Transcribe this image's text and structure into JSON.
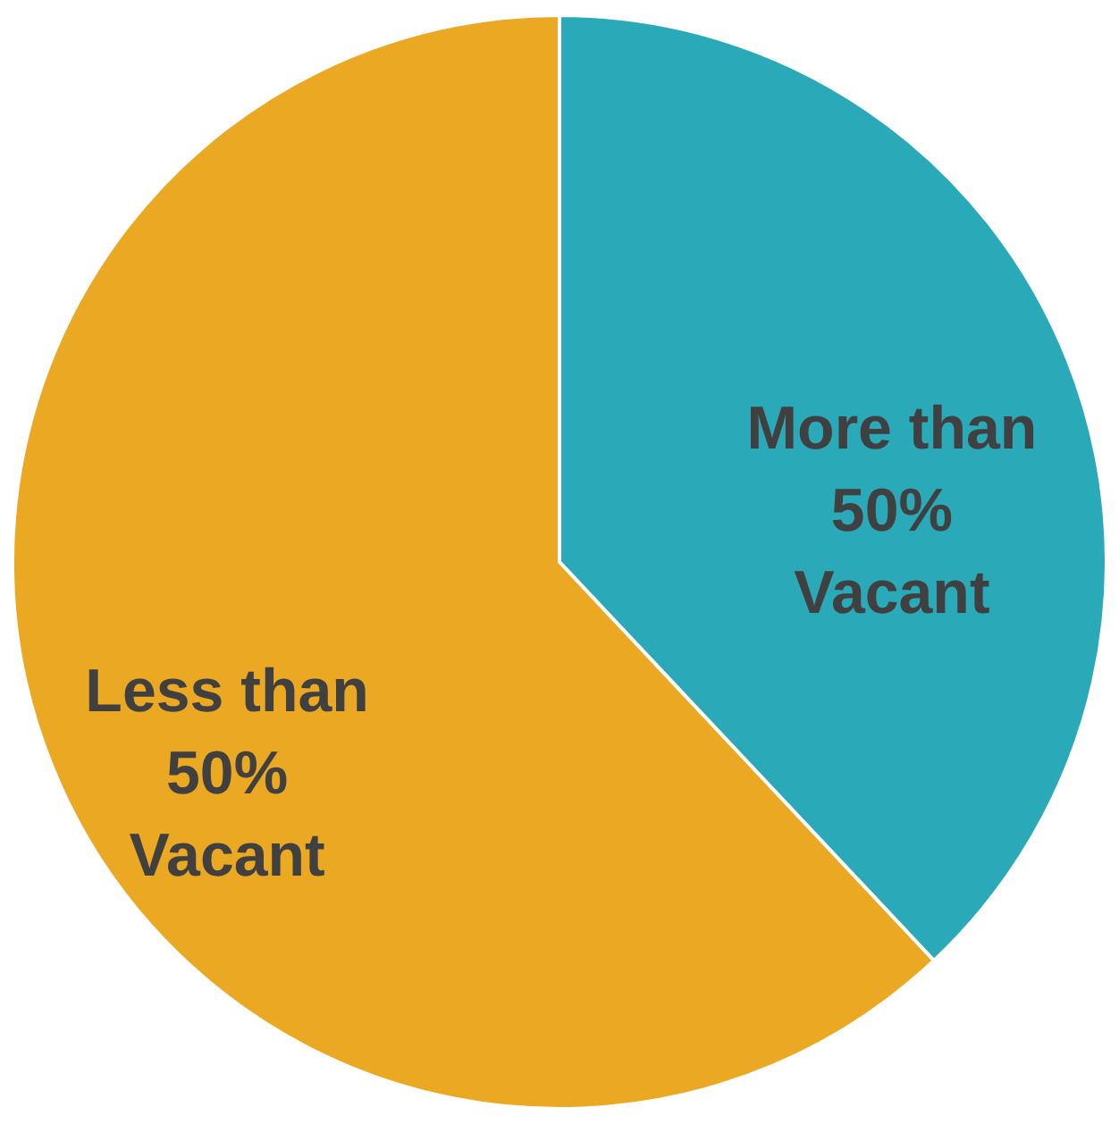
{
  "chart_data": {
    "type": "pie",
    "categories": [
      "More than 50% Vacant",
      "Less than 50% Vacant"
    ],
    "values": [
      38,
      62
    ],
    "colors": [
      "#2aa9b9",
      "#eba823"
    ]
  }
}
